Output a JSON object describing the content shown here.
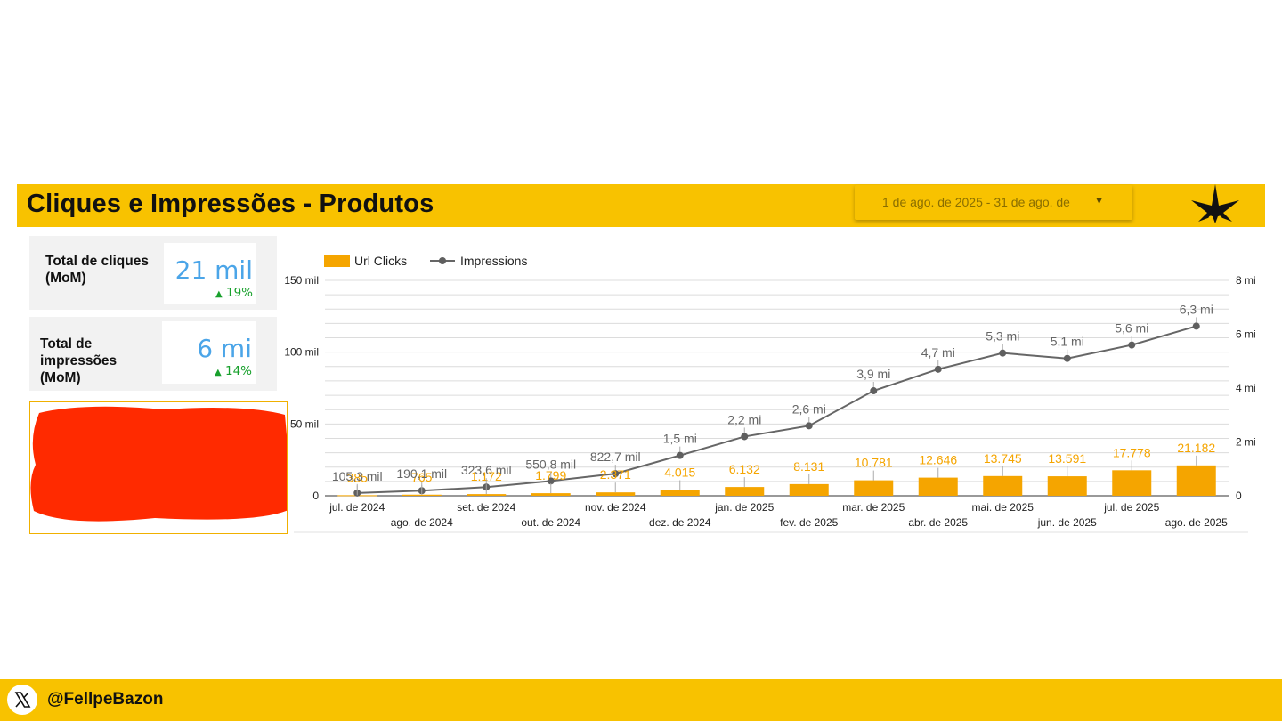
{
  "header": {
    "title": "Cliques e Impressões - Produtos",
    "date_range": "1 de ago. de 2025 - 31 de ago. de",
    "accent_color": "#f8c200",
    "logo_icon": "cannabis-leaf-icon"
  },
  "cards": [
    {
      "label": "Total de cliques (MoM)",
      "value": "21 mil",
      "delta": "19%",
      "delta_icon": "arrow-up-icon"
    },
    {
      "label": "Total de impressões (MoM)",
      "value": "6 mi",
      "delta": "14%",
      "delta_icon": "arrow-up-icon"
    }
  ],
  "footer": {
    "handle": "@FellpeBazon",
    "social_icon": "x-twitter-icon"
  },
  "chart_data": {
    "type": "bar",
    "categories": [
      "jul. de 2024",
      "ago. de 2024",
      "set. de 2024",
      "out. de 2024",
      "nov. de 2024",
      "dez. de 2024",
      "jan. de 2025",
      "fev. de 2025",
      "mar. de 2025",
      "abr. de 2025",
      "mai. de 2025",
      "jun. de 2025",
      "jul. de 2025",
      "ago. de 2025"
    ],
    "series": [
      {
        "name": "Url Clicks",
        "type": "bar",
        "axis": "left",
        "color": "#f5a500",
        "values": [
          385,
          765,
          1172,
          1799,
          2371,
          4015,
          6132,
          8131,
          10781,
          12646,
          13745,
          13591,
          17778,
          21182
        ],
        "labels": [
          "385",
          "765",
          "1.172",
          "1.799",
          "2.371",
          "4.015",
          "6.132",
          "8.131",
          "10.781",
          "12.646",
          "13.745",
          "13.591",
          "17.778",
          "21.182"
        ]
      },
      {
        "name": "Impressions",
        "type": "line",
        "axis": "right",
        "color": "#666666",
        "values": [
          105300,
          190100,
          323600,
          550800,
          822700,
          1500000,
          2200000,
          2600000,
          3900000,
          4700000,
          5300000,
          5100000,
          5600000,
          6300000
        ],
        "labels": [
          "105,3 mil",
          "190,1 mil",
          "323,6 mil",
          "550,8 mil",
          "822,7 mil",
          "1,5 mi",
          "2,2 mi",
          "2,6 mi",
          "3,9 mi",
          "4,7 mi",
          "5,3 mi",
          "5,1 mi",
          "5,6 mi",
          "6,3 mi"
        ]
      }
    ],
    "y_left": {
      "ylim": [
        0,
        150000
      ],
      "ticks": [
        0,
        50000,
        100000,
        150000
      ],
      "tick_labels": [
        "0",
        "50 mil",
        "100 mil",
        "150 mil"
      ]
    },
    "y_right": {
      "ylim": [
        0,
        8000000
      ],
      "ticks": [
        0,
        2000000,
        4000000,
        6000000,
        8000000
      ],
      "tick_labels": [
        "0",
        "2 mi",
        "4 mi",
        "6 mi",
        "8 mi"
      ]
    },
    "legend": "top-left",
    "grid": true
  }
}
